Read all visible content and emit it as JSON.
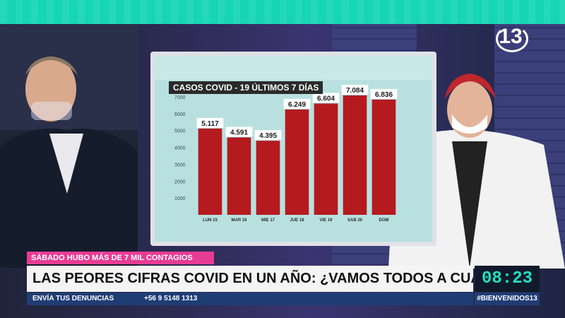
{
  "broadcast": {
    "tag": "SÁBADO HUBO MÁS DE 7 MIL CONTAGIOS",
    "headline": "LAS PEORES CIFRAS COVID EN UN AÑO: ¿VAMOS TODOS A CUARENTENA?",
    "clock": "08:23",
    "ticker_label": "ENVÍA TUS DENUNCIAS",
    "ticker_phone": "+56 9 5148 1313",
    "hashtag": "#BIENVENIDOS13",
    "channel_logo": "13",
    "colors": {
      "accent": "#16d6b4",
      "tag": "#e83b94",
      "ticker": "#1f3d75",
      "bar": "#b51a1f"
    }
  },
  "chart_data": {
    "type": "bar",
    "title": "CASOS COVID - 19 ÚLTIMOS 7 DÍAS",
    "categories": [
      "LUN 15",
      "MAR 16",
      "MIE 17",
      "JUE 18",
      "VIE 19",
      "SAB 20",
      "DOM"
    ],
    "values": [
      5117,
      4591,
      4395,
      6249,
      6604,
      7084,
      6836
    ],
    "value_labels": [
      "5.117",
      "4.591",
      "4.395",
      "6.249",
      "6.604",
      "7.084",
      "6.836"
    ],
    "yticks": [
      1000,
      2000,
      3000,
      4000,
      5000,
      6000,
      7000
    ],
    "ytick_labels": [
      "1000",
      "2000",
      "3000",
      "4000",
      "5000",
      "6000",
      "7000"
    ],
    "ylim": [
      0,
      7000
    ],
    "grid": false
  }
}
